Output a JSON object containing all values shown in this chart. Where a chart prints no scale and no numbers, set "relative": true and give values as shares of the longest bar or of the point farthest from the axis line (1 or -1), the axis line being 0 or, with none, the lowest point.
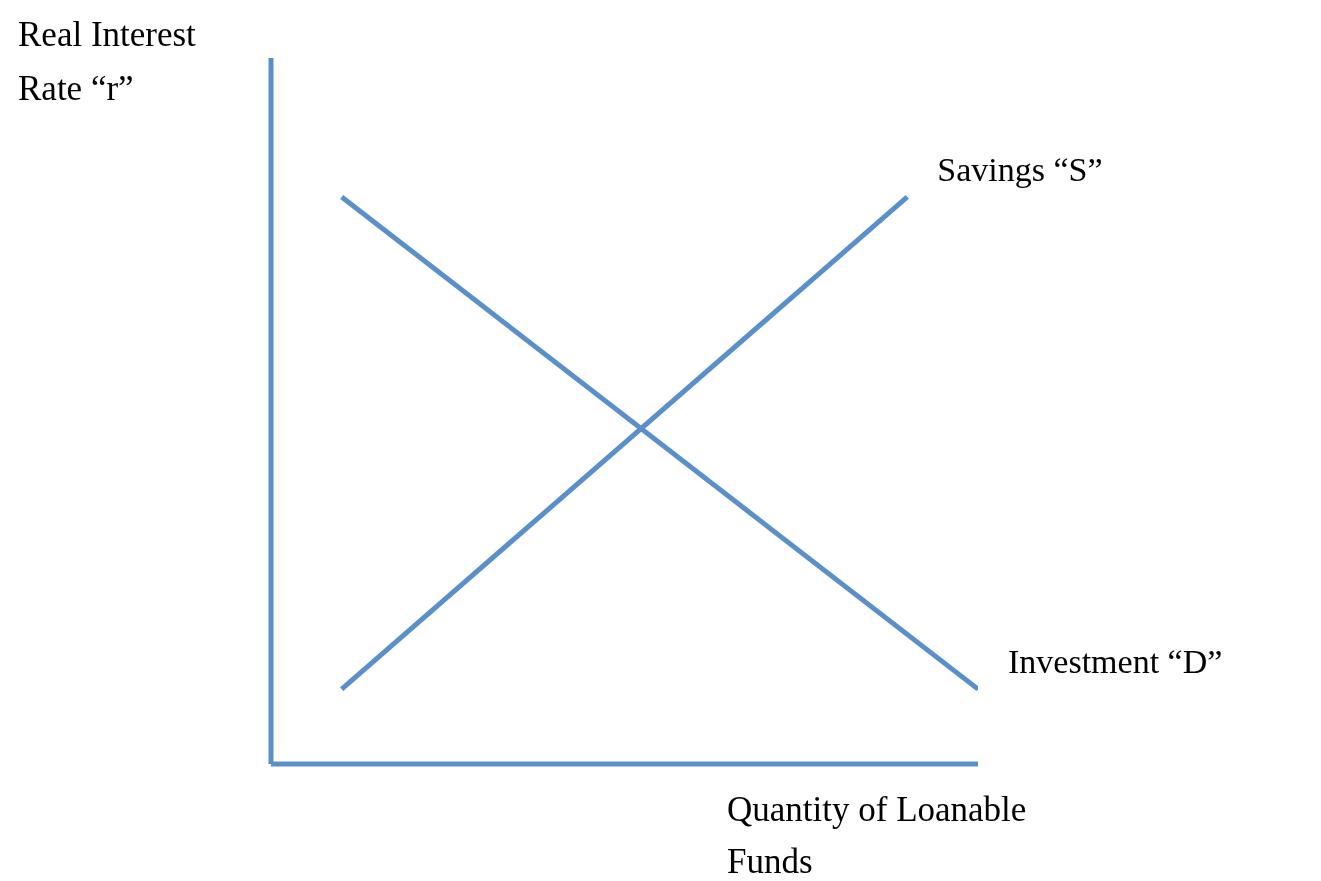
{
  "chart_data": {
    "type": "line",
    "relative": true,
    "xlabel": "Quantity of Loanable Funds",
    "ylabel": "Real Interest Rate “r”",
    "marker": "none",
    "line_style": "solid",
    "categories": [
      null,
      null,
      null,
      null,
      null,
      null,
      null,
      null,
      null,
      null,
      null
    ],
    "series": [
      {
        "name": "Savings “S”",
        "color": "#5b8fc9",
        "values": [
          null,
          0.132,
          null,
          null,
          null,
          null,
          null,
          null,
          null,
          1,
          null
        ]
      },
      {
        "name": "Investment “D”",
        "color": "#5b8fc9",
        "values": [
          null,
          1,
          null,
          null,
          null,
          null,
          null,
          null,
          null,
          null,
          0.132
        ]
      }
    ]
  }
}
